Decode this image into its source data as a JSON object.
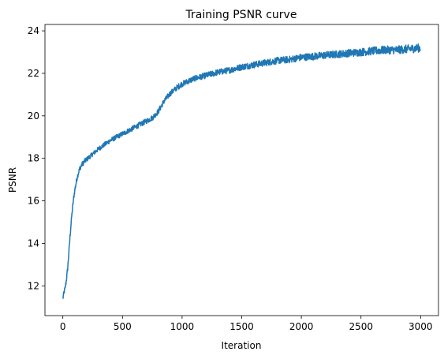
{
  "chart_data": {
    "type": "line",
    "title": "Training PSNR curve",
    "xlabel": "Iteration",
    "ylabel": "PSNR",
    "xlim": [
      -150,
      3150
    ],
    "ylim": [
      10.6,
      24.3
    ],
    "xticks": [
      0,
      500,
      1000,
      1500,
      2000,
      2500,
      3000
    ],
    "yticks": [
      12,
      14,
      16,
      18,
      20,
      22,
      24
    ],
    "grid": false,
    "legend": "none",
    "series": [
      {
        "color": "#1f77b4",
        "x": [
          0,
          10,
          20,
          30,
          40,
          50,
          60,
          70,
          80,
          90,
          100,
          120,
          140,
          160,
          180,
          200,
          250,
          300,
          350,
          400,
          450,
          500,
          550,
          600,
          650,
          700,
          750,
          800,
          850,
          900,
          950,
          1000,
          1100,
          1200,
          1300,
          1400,
          1500,
          1600,
          1700,
          1800,
          1900,
          2000,
          2100,
          2200,
          2300,
          2400,
          2500,
          2600,
          2700,
          2800,
          2900,
          3000
        ],
        "y": [
          11.4,
          11.7,
          11.9,
          12.3,
          12.8,
          13.5,
          14.3,
          15.0,
          15.6,
          16.1,
          16.5,
          17.1,
          17.5,
          17.7,
          17.85,
          17.95,
          18.2,
          18.45,
          18.65,
          18.85,
          19.0,
          19.15,
          19.3,
          19.45,
          19.6,
          19.75,
          19.9,
          20.2,
          20.7,
          21.05,
          21.3,
          21.5,
          21.75,
          21.9,
          22.05,
          22.15,
          22.3,
          22.4,
          22.5,
          22.6,
          22.65,
          22.75,
          22.8,
          22.85,
          22.9,
          22.95,
          23.0,
          23.05,
          23.1,
          23.1,
          23.15,
          23.2
        ]
      }
    ]
  }
}
